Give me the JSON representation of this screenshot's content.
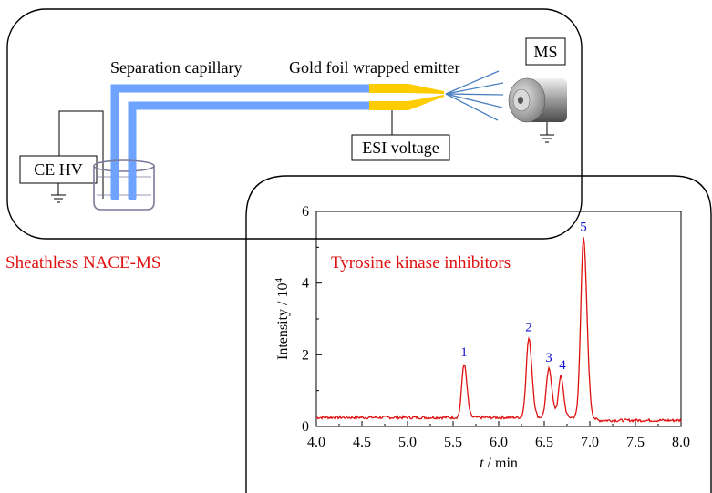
{
  "setup": {
    "label_capillary": "Separation capillary",
    "label_emitter": "Gold foil wrapped emitter",
    "label_ms": "MS",
    "label_esi": "ESI voltage",
    "label_cehv": "CE HV",
    "caption": "Sheathless NACE-MS",
    "colors": {
      "capillary": "#6ea3ff",
      "emitter": "#ffcc00",
      "caption": "#e01010",
      "spray": "#4a7fc0"
    }
  },
  "chart_data": {
    "type": "line",
    "title": "Tyrosine kinase inhibitors",
    "xlabel_italic": "t",
    "xlabel_unit": " / min",
    "ylabel": "Intensity / 10",
    "ylabel_exp": "4",
    "xlim": [
      4.0,
      8.0
    ],
    "ylim": [
      0,
      6
    ],
    "x_ticks": [
      "4.0",
      "4.5",
      "5.0",
      "5.5",
      "6.0",
      "6.5",
      "7.0",
      "7.5",
      "8.0"
    ],
    "y_ticks": [
      "0",
      "2",
      "4",
      "6"
    ],
    "line_color": "#e01010",
    "label_color": "#1010d0",
    "baseline": 0.25,
    "peaks": [
      {
        "label": "1",
        "x": 5.62,
        "y": 1.75,
        "width": 0.025
      },
      {
        "label": "2",
        "x": 6.33,
        "y": 2.45,
        "width": 0.028
      },
      {
        "label": "3",
        "x": 6.55,
        "y": 1.6,
        "width": 0.028
      },
      {
        "label": "4",
        "x": 6.68,
        "y": 1.4,
        "width": 0.025
      },
      {
        "label": "5",
        "x": 6.93,
        "y": 5.25,
        "width": 0.03
      }
    ]
  }
}
